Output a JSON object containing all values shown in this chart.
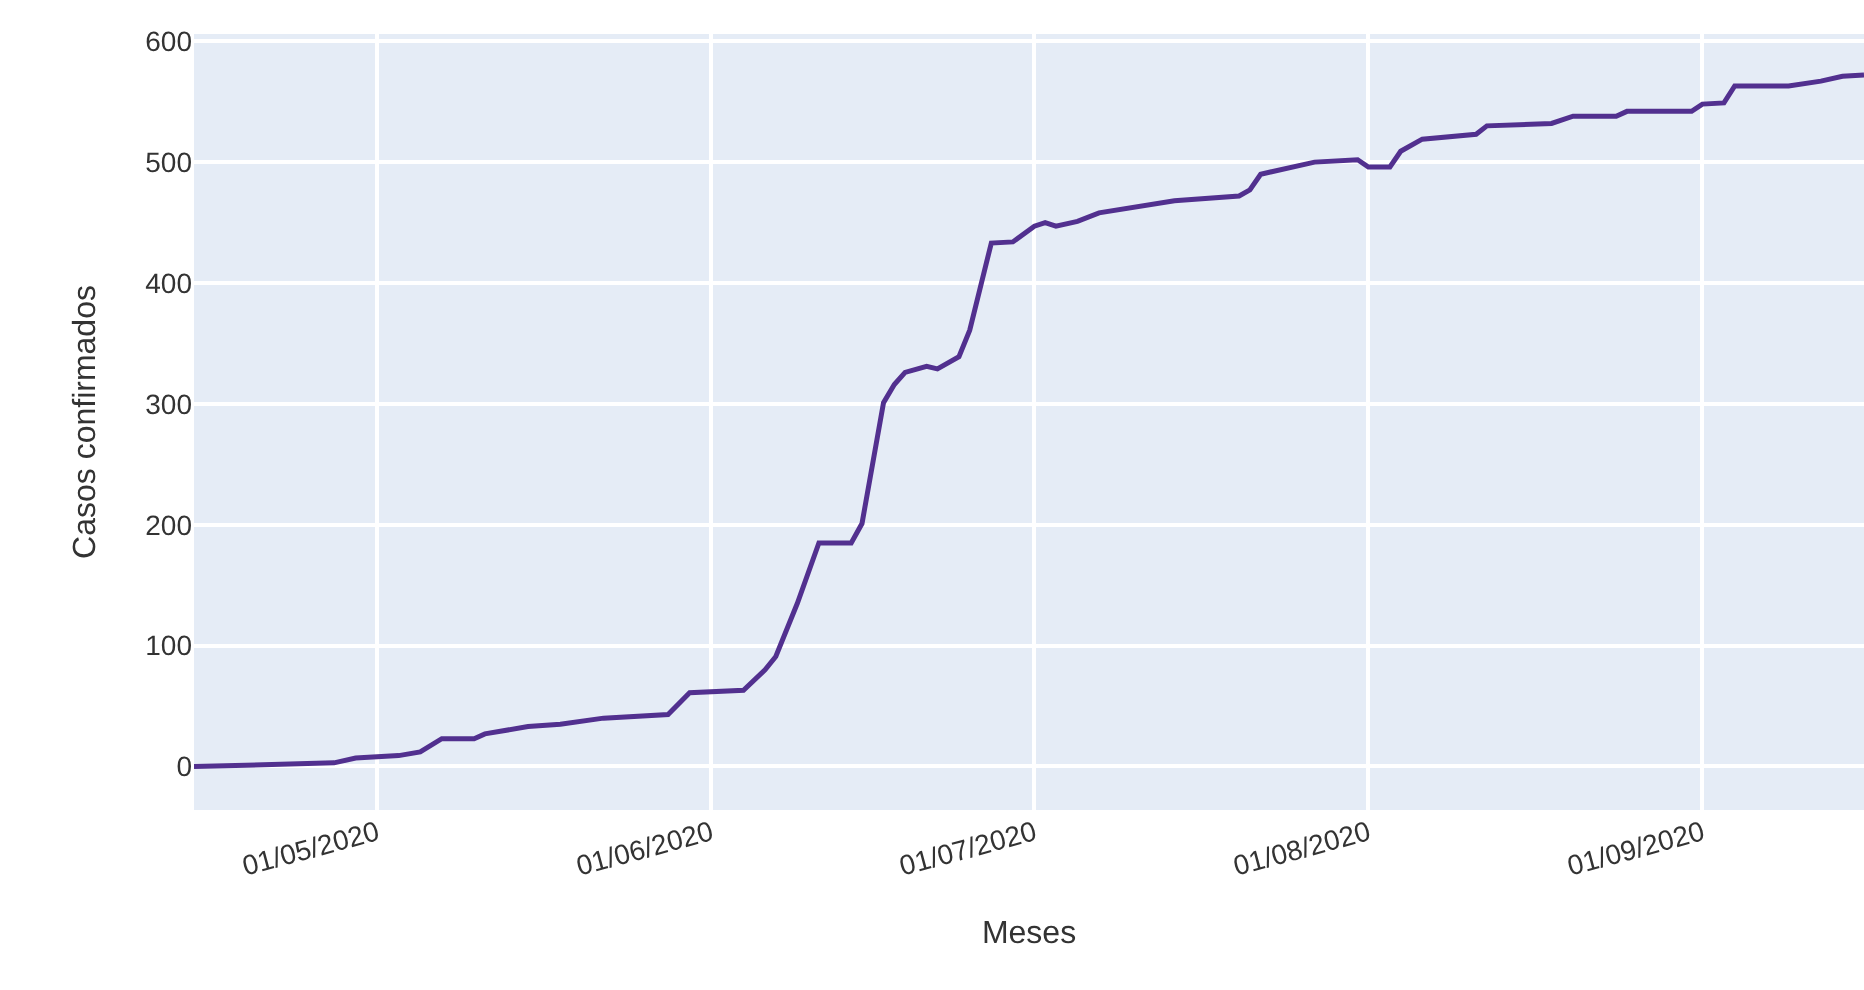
{
  "chart_data": {
    "type": "line",
    "xlabel": "Meses",
    "ylabel": "Casos confirmados",
    "x": [
      "2020-04-14",
      "2020-04-27",
      "2020-04-29",
      "2020-05-03",
      "2020-05-05",
      "2020-05-07",
      "2020-05-10",
      "2020-05-11",
      "2020-05-15",
      "2020-05-18",
      "2020-05-22",
      "2020-05-28",
      "2020-05-30",
      "2020-06-04",
      "2020-06-06",
      "2020-06-07",
      "2020-06-09",
      "2020-06-11",
      "2020-06-14",
      "2020-06-15",
      "2020-06-17",
      "2020-06-18",
      "2020-06-19",
      "2020-06-21",
      "2020-06-22",
      "2020-06-24",
      "2020-06-25",
      "2020-06-27",
      "2020-06-29",
      "2020-07-01",
      "2020-07-02",
      "2020-07-03",
      "2020-07-05",
      "2020-07-07",
      "2020-07-14",
      "2020-07-20",
      "2020-07-21",
      "2020-07-22",
      "2020-07-27",
      "2020-07-31",
      "2020-08-01",
      "2020-08-03",
      "2020-08-04",
      "2020-08-06",
      "2020-08-11",
      "2020-08-12",
      "2020-08-18",
      "2020-08-20",
      "2020-08-24",
      "2020-08-25",
      "2020-08-31",
      "2020-09-01",
      "2020-09-03",
      "2020-09-04",
      "2020-09-09",
      "2020-09-12",
      "2020-09-14",
      "2020-09-16"
    ],
    "series": [
      {
        "color": "#52308f",
        "values": [
          0,
          3,
          7,
          9,
          12,
          23,
          23,
          27,
          33,
          35,
          40,
          43,
          61,
          63,
          80,
          91,
          135,
          185,
          185,
          201,
          301,
          316,
          326,
          331,
          329,
          339,
          361,
          433,
          434,
          447,
          450,
          447,
          451,
          458,
          468,
          472,
          477,
          490,
          500,
          502,
          496,
          496,
          509,
          519,
          523,
          530,
          532,
          538,
          538,
          542,
          542,
          548,
          549,
          563,
          563,
          567,
          571,
          572
        ]
      }
    ],
    "xlim": [
      "2020-04-14",
      "2020-09-16"
    ],
    "xticks": [
      {
        "value": "2020-05-01",
        "label": "01/05/2020"
      },
      {
        "value": "2020-06-01",
        "label": "01/06/2020"
      },
      {
        "value": "2020-07-01",
        "label": "01/07/2020"
      },
      {
        "value": "2020-08-01",
        "label": "01/08/2020"
      },
      {
        "value": "2020-09-01",
        "label": "01/09/2020"
      }
    ],
    "ylim": [
      -36,
      606
    ],
    "yticks": [
      0,
      100,
      200,
      300,
      400,
      500,
      600
    ],
    "grid": true,
    "marker": "none",
    "line_style": "solid"
  }
}
